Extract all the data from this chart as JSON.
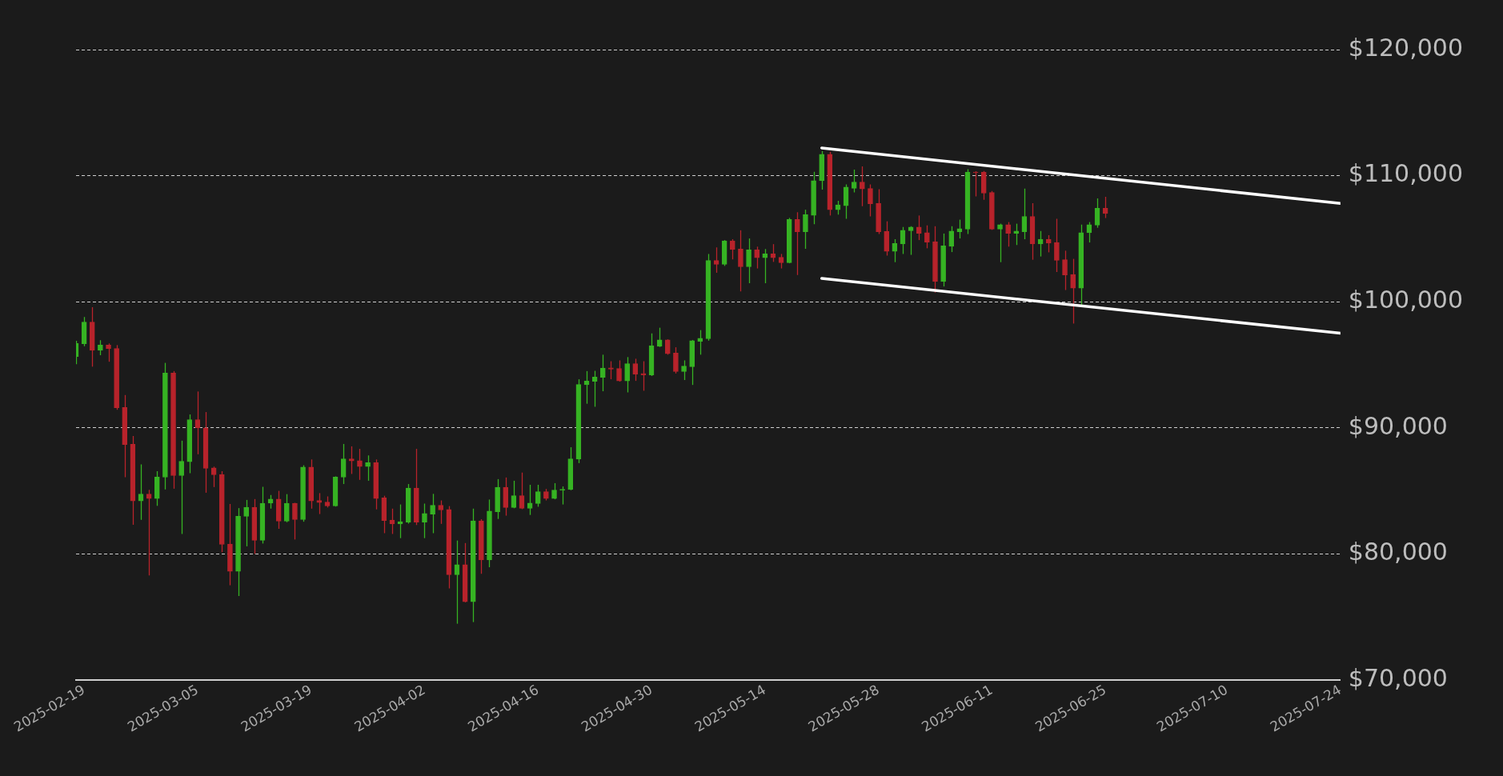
{
  "chart_data": {
    "type": "candlestick",
    "x": [
      "2025-02-18",
      "2025-02-19",
      "2025-02-20",
      "2025-02-21",
      "2025-02-22",
      "2025-02-23",
      "2025-02-24",
      "2025-02-25",
      "2025-02-26",
      "2025-02-27",
      "2025-02-28",
      "2025-03-01",
      "2025-03-02",
      "2025-03-03",
      "2025-03-04",
      "2025-03-05",
      "2025-03-06",
      "2025-03-07",
      "2025-03-08",
      "2025-03-09",
      "2025-03-10",
      "2025-03-11",
      "2025-03-12",
      "2025-03-13",
      "2025-03-14",
      "2025-03-15",
      "2025-03-16",
      "2025-03-17",
      "2025-03-18",
      "2025-03-19",
      "2025-03-20",
      "2025-03-21",
      "2025-03-22",
      "2025-03-23",
      "2025-03-24",
      "2025-03-25",
      "2025-03-26",
      "2025-03-27",
      "2025-03-28",
      "2025-03-29",
      "2025-03-30",
      "2025-03-31",
      "2025-04-01",
      "2025-04-02",
      "2025-04-03",
      "2025-04-04",
      "2025-04-05",
      "2025-04-06",
      "2025-04-07",
      "2025-04-08",
      "2025-04-09",
      "2025-04-10",
      "2025-04-11",
      "2025-04-12",
      "2025-04-13",
      "2025-04-14",
      "2025-04-15",
      "2025-04-16",
      "2025-04-17",
      "2025-04-18",
      "2025-04-19",
      "2025-04-20",
      "2025-04-21",
      "2025-04-22",
      "2025-04-23",
      "2025-04-24",
      "2025-04-25",
      "2025-04-26",
      "2025-04-27",
      "2025-04-28",
      "2025-04-29",
      "2025-04-30",
      "2025-05-01",
      "2025-05-02",
      "2025-05-03",
      "2025-05-04",
      "2025-05-05",
      "2025-05-06",
      "2025-05-07",
      "2025-05-08",
      "2025-05-09",
      "2025-05-10",
      "2025-05-11",
      "2025-05-12",
      "2025-05-13",
      "2025-05-14",
      "2025-05-15",
      "2025-05-16",
      "2025-05-17",
      "2025-05-18",
      "2025-05-19",
      "2025-05-20",
      "2025-05-21",
      "2025-05-22",
      "2025-05-23",
      "2025-05-24",
      "2025-05-25",
      "2025-05-26",
      "2025-05-27",
      "2025-05-28",
      "2025-05-29",
      "2025-05-30",
      "2025-05-31",
      "2025-06-01",
      "2025-06-02",
      "2025-06-03",
      "2025-06-04",
      "2025-06-05",
      "2025-06-06",
      "2025-06-07",
      "2025-06-08",
      "2025-06-09",
      "2025-06-10",
      "2025-06-11",
      "2025-06-12",
      "2025-06-13",
      "2025-06-14",
      "2025-06-15",
      "2025-06-16",
      "2025-06-17",
      "2025-06-18",
      "2025-06-19",
      "2025-06-20",
      "2025-06-21",
      "2025-06-22",
      "2025-06-23",
      "2025-06-24",
      "2025-06-25"
    ],
    "ohlc": [
      [
        95650,
        96900,
        95040,
        96690
      ],
      [
        96670,
        98790,
        96470,
        98380
      ],
      [
        98380,
        99570,
        94850,
        96150
      ],
      [
        96150,
        96950,
        95760,
        96560
      ],
      [
        96560,
        96690,
        95240,
        96280
      ],
      [
        96300,
        96560,
        91430,
        91600
      ],
      [
        91620,
        92600,
        86080,
        88680
      ],
      [
        88700,
        89350,
        82310,
        84200
      ],
      [
        84200,
        87100,
        82700,
        84740
      ],
      [
        84740,
        85080,
        78290,
        84390
      ],
      [
        84390,
        86560,
        83810,
        86100
      ],
      [
        86080,
        95150,
        85110,
        94350
      ],
      [
        94350,
        94500,
        85170,
        86210
      ],
      [
        86210,
        88980,
        81580,
        87340
      ],
      [
        87310,
        91060,
        86400,
        90650
      ],
      [
        90650,
        92880,
        87900,
        90000
      ],
      [
        90000,
        91250,
        84850,
        86790
      ],
      [
        86820,
        86920,
        85300,
        86270
      ],
      [
        86300,
        86560,
        80130,
        80750
      ],
      [
        80780,
        83960,
        77510,
        78610
      ],
      [
        78610,
        83630,
        76660,
        82980
      ],
      [
        82980,
        84280,
        80600,
        83700
      ],
      [
        83700,
        84350,
        80000,
        81080
      ],
      [
        81080,
        85320,
        80820,
        84020
      ],
      [
        84020,
        84670,
        83590,
        84350
      ],
      [
        84350,
        85000,
        81990,
        82590
      ],
      [
        82590,
        84740,
        82510,
        84020
      ],
      [
        84020,
        84050,
        81140,
        82720
      ],
      [
        82720,
        87030,
        82550,
        86880
      ],
      [
        86880,
        87490,
        83590,
        84200
      ],
      [
        84240,
        84820,
        83160,
        84070
      ],
      [
        84110,
        84560,
        83680,
        83810
      ],
      [
        83810,
        86150,
        83750,
        86100
      ],
      [
        86080,
        88720,
        85540,
        87530
      ],
      [
        87530,
        88530,
        86340,
        87380
      ],
      [
        87400,
        88330,
        85870,
        86930
      ],
      [
        86930,
        87810,
        85800,
        87230
      ],
      [
        87230,
        87490,
        83530,
        84390
      ],
      [
        84440,
        84610,
        81640,
        82640
      ],
      [
        82680,
        83590,
        81580,
        82380
      ],
      [
        82380,
        83920,
        81250,
        82550
      ],
      [
        82510,
        85540,
        82400,
        85220
      ],
      [
        85220,
        88330,
        82290,
        82510
      ],
      [
        82510,
        83990,
        81250,
        83200
      ],
      [
        83160,
        84760,
        81640,
        83850
      ],
      [
        83850,
        84240,
        82380,
        83480
      ],
      [
        83530,
        83790,
        77260,
        78350
      ],
      [
        78350,
        81060,
        74460,
        79150
      ],
      [
        79150,
        80860,
        76150,
        76210
      ],
      [
        76210,
        83590,
        74590,
        82620
      ],
      [
        82620,
        82750,
        78420,
        79520
      ],
      [
        79520,
        84310,
        78940,
        83400
      ],
      [
        83350,
        85930,
        82770,
        85280
      ],
      [
        85280,
        86060,
        83030,
        83680
      ],
      [
        83680,
        85800,
        83620,
        84610
      ],
      [
        84610,
        86450,
        83550,
        83610
      ],
      [
        83610,
        85480,
        83090,
        84030
      ],
      [
        84000,
        85480,
        83740,
        84930
      ],
      [
        84930,
        85150,
        84240,
        84390
      ],
      [
        84390,
        85610,
        84330,
        85060
      ],
      [
        85040,
        85350,
        83920,
        85130
      ],
      [
        85110,
        88460,
        85050,
        87530
      ],
      [
        87510,
        93850,
        87200,
        93440
      ],
      [
        93420,
        94500,
        91910,
        93700
      ],
      [
        93680,
        94520,
        91670,
        94030
      ],
      [
        94010,
        95800,
        92900,
        94740
      ],
      [
        94760,
        95280,
        93850,
        94650
      ],
      [
        94700,
        95350,
        93660,
        93720
      ],
      [
        93720,
        95610,
        92810,
        95090
      ],
      [
        95090,
        95480,
        93720,
        94260
      ],
      [
        94310,
        95280,
        92940,
        94200
      ],
      [
        94200,
        97490,
        94110,
        96520
      ],
      [
        96470,
        97940,
        96410,
        96970
      ],
      [
        96970,
        97020,
        95800,
        95870
      ],
      [
        95930,
        96390,
        94310,
        94460
      ],
      [
        94460,
        95350,
        93790,
        94890
      ],
      [
        94850,
        96970,
        93400,
        96910
      ],
      [
        96860,
        97750,
        95800,
        97100
      ],
      [
        97060,
        103790,
        96910,
        103270
      ],
      [
        103270,
        104310,
        102300,
        102970
      ],
      [
        102970,
        104890,
        102840,
        104830
      ],
      [
        104830,
        104960,
        103360,
        104140
      ],
      [
        104180,
        105670,
        100820,
        102770
      ],
      [
        102770,
        105020,
        101470,
        104110
      ],
      [
        104110,
        104370,
        102640,
        103490
      ],
      [
        103490,
        104180,
        101470,
        103790
      ],
      [
        103790,
        104570,
        103160,
        103490
      ],
      [
        103530,
        103790,
        102640,
        103100
      ],
      [
        103100,
        106650,
        103050,
        106520
      ],
      [
        106520,
        107100,
        102120,
        105560
      ],
      [
        105560,
        107300,
        104200,
        106910
      ],
      [
        106860,
        110300,
        106150,
        109600
      ],
      [
        109600,
        111950,
        108900,
        111700
      ],
      [
        111700,
        111900,
        106840,
        107300
      ],
      [
        107300,
        108000,
        106910,
        107690
      ],
      [
        107620,
        109300,
        106580,
        109100
      ],
      [
        109000,
        110480,
        108680,
        109500
      ],
      [
        109500,
        110740,
        107580,
        108940
      ],
      [
        108980,
        109310,
        106770,
        107770
      ],
      [
        107810,
        108920,
        105370,
        105560
      ],
      [
        105580,
        106380,
        103660,
        104000
      ],
      [
        104000,
        104960,
        103140,
        104630
      ],
      [
        104590,
        105930,
        103790,
        105670
      ],
      [
        105630,
        105990,
        103720,
        105930
      ],
      [
        105930,
        106840,
        104890,
        105430
      ],
      [
        105480,
        106060,
        104240,
        104720
      ],
      [
        104760,
        105990,
        100730,
        101600
      ],
      [
        101600,
        105410,
        101210,
        104440
      ],
      [
        104390,
        105990,
        103940,
        105610
      ],
      [
        105560,
        106510,
        105020,
        105800
      ],
      [
        105760,
        110520,
        105370,
        110280
      ],
      [
        110280,
        110350,
        108350,
        110240
      ],
      [
        110280,
        110370,
        108090,
        108610
      ],
      [
        108660,
        108790,
        105700,
        105760
      ],
      [
        105760,
        106190,
        103140,
        106120
      ],
      [
        106120,
        106320,
        104370,
        105430
      ],
      [
        105430,
        106190,
        104500,
        105610
      ],
      [
        105560,
        108980,
        104960,
        106770
      ],
      [
        106770,
        107810,
        103330,
        104590
      ],
      [
        104590,
        105610,
        103590,
        104960
      ],
      [
        104960,
        105280,
        103920,
        104650
      ],
      [
        104700,
        106580,
        102360,
        103290
      ],
      [
        103330,
        104050,
        100930,
        102120
      ],
      [
        102160,
        103400,
        98270,
        101080
      ],
      [
        101080,
        106120,
        99690,
        105480
      ],
      [
        105480,
        106320,
        104700,
        106120
      ],
      [
        106080,
        108200,
        105870,
        107420
      ],
      [
        107420,
        108330,
        106640,
        106990
      ]
    ],
    "colors": [
      "#36b323",
      "#36b323",
      "#b8232b",
      "#36b323",
      "#b8232b",
      "#b8232b",
      "#b8232b",
      "#b8232b",
      "#36b323",
      "#b8232b",
      "#36b323",
      "#36b323",
      "#b8232b",
      "#36b323",
      "#36b323",
      "#b8232b",
      "#b8232b",
      "#b8232b",
      "#b8232b",
      "#b8232b",
      "#36b323",
      "#36b323",
      "#b8232b",
      "#36b323",
      "#36b323",
      "#b8232b",
      "#36b323",
      "#b8232b",
      "#36b323",
      "#b8232b",
      "#b8232b",
      "#b8232b",
      "#36b323",
      "#36b323",
      "#b8232b",
      "#b8232b",
      "#36b323",
      "#b8232b",
      "#b8232b",
      "#b8232b",
      "#36b323",
      "#36b323",
      "#b8232b",
      "#36b323",
      "#36b323",
      "#b8232b",
      "#b8232b",
      "#36b323",
      "#b8232b",
      "#36b323",
      "#b8232b",
      "#36b323",
      "#36b323",
      "#b8232b",
      "#36b323",
      "#b8232b",
      "#36b323",
      "#36b323",
      "#b8232b",
      "#36b323",
      "#36b323",
      "#36b323",
      "#36b323",
      "#36b323",
      "#36b323",
      "#36b323",
      "#b8232b",
      "#b8232b",
      "#36b323",
      "#b8232b",
      "#b8232b",
      "#36b323",
      "#36b323",
      "#b8232b",
      "#b8232b",
      "#36b323",
      "#36b323",
      "#36b323",
      "#36b323",
      "#b8232b",
      "#36b323",
      "#b8232b",
      "#b8232b",
      "#36b323",
      "#b8232b",
      "#36b323",
      "#b8232b",
      "#b8232b",
      "#36b323",
      "#b8232b",
      "#36b323",
      "#36b323",
      "#36b323",
      "#b8232b",
      "#36b323",
      "#36b323",
      "#36b323",
      "#b8232b",
      "#b8232b",
      "#b8232b",
      "#b8232b",
      "#36b323",
      "#36b323",
      "#36b323",
      "#b8232b",
      "#b8232b",
      "#b8232b",
      "#36b323",
      "#36b323",
      "#36b323",
      "#36b323",
      "#b8232b",
      "#b8232b",
      "#b8232b",
      "#36b323",
      "#b8232b",
      "#36b323",
      "#36b323",
      "#b8232b",
      "#36b323",
      "#b8232b",
      "#b8232b",
      "#b8232b",
      "#b8232b",
      "#36b323",
      "#36b323",
      "#36b323",
      "#b8232b"
    ],
    "series": [
      {
        "type": "line",
        "x": [
          "2025-05-21",
          "2025-07-24"
        ],
        "values": [
          112200,
          107800
        ],
        "color": "#ffffff"
      },
      {
        "type": "line",
        "x": [
          "2025-05-21",
          "2025-07-24"
        ],
        "values": [
          101850,
          97500
        ],
        "color": "#ffffff"
      }
    ],
    "xlim": [
      "2025-02-18",
      "2025-07-24"
    ],
    "xticks": [
      "2025-02-19",
      "2025-03-05",
      "2025-03-19",
      "2025-04-02",
      "2025-04-16",
      "2025-04-30",
      "2025-05-14",
      "2025-05-28",
      "2025-06-11",
      "2025-06-25",
      "2025-07-10",
      "2025-07-24"
    ],
    "ylim": [
      70000,
      120000
    ],
    "yticks": [
      {
        "value": 70000,
        "label": "$70,000"
      },
      {
        "value": 80000,
        "label": "$80,000"
      },
      {
        "value": 90000,
        "label": "$90,000"
      },
      {
        "value": 100000,
        "label": "$100,000"
      },
      {
        "value": 110000,
        "label": "$110,000"
      },
      {
        "value": 120000,
        "label": "$120,000"
      }
    ],
    "grid": "y"
  }
}
